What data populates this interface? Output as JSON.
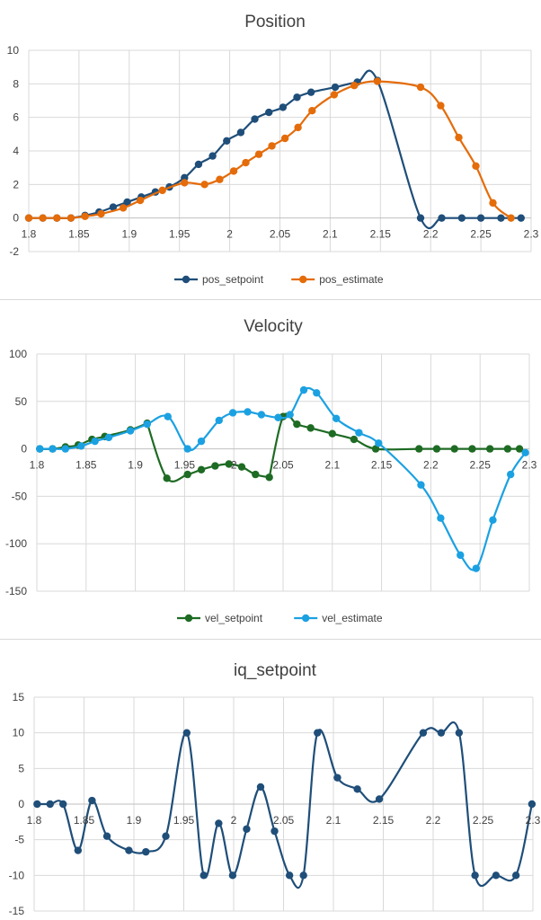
{
  "chart_data": [
    {
      "type": "line",
      "title": "Position",
      "xlabel": "",
      "ylabel": "",
      "xlim": [
        1.8,
        2.3
      ],
      "ylim": [
        -2,
        10
      ],
      "xticks": [
        "1.8",
        "1.85",
        "1.9",
        "1.95",
        "2",
        "2.05",
        "2.1",
        "2.15",
        "2.2",
        "2.25",
        "2.3"
      ],
      "yticks": [
        "-2",
        "0",
        "2",
        "4",
        "6",
        "8",
        "10"
      ],
      "grid": true,
      "legend": "bottom",
      "series": [
        {
          "name": "pos_setpoint",
          "color": "#1f4e79",
          "x": [
            1.8,
            1.814,
            1.828,
            1.842,
            1.856,
            1.87,
            1.884,
            1.898,
            1.912,
            1.926,
            1.94,
            1.955,
            1.969,
            1.983,
            1.997,
            2.011,
            2.025,
            2.039,
            2.053,
            2.067,
            2.081,
            2.105,
            2.127,
            2.147,
            2.19,
            2.211,
            2.231,
            2.25,
            2.27,
            2.29
          ],
          "y": [
            0,
            0,
            0,
            0,
            0.15,
            0.35,
            0.65,
            0.95,
            1.25,
            1.55,
            1.85,
            2.4,
            3.2,
            3.7,
            4.6,
            5.1,
            5.9,
            6.3,
            6.6,
            7.2,
            7.5,
            7.8,
            8.1,
            8.2,
            0,
            0,
            0,
            0,
            0,
            0
          ]
        },
        {
          "name": "pos_estimate",
          "color": "#e46c0a",
          "x": [
            1.8,
            1.814,
            1.828,
            1.842,
            1.856,
            1.872,
            1.894,
            1.911,
            1.933,
            1.955,
            1.975,
            1.99,
            2.004,
            2.016,
            2.029,
            2.042,
            2.055,
            2.068,
            2.082,
            2.104,
            2.124,
            2.147,
            2.19,
            2.21,
            2.228,
            2.245,
            2.262,
            2.28
          ],
          "y": [
            0,
            0,
            0,
            0,
            0.1,
            0.25,
            0.6,
            1.05,
            1.65,
            2.1,
            2.0,
            2.3,
            2.8,
            3.3,
            3.8,
            4.3,
            4.75,
            5.4,
            6.4,
            7.35,
            7.9,
            8.15,
            7.8,
            6.7,
            4.8,
            3.1,
            0.9,
            0
          ]
        }
      ]
    },
    {
      "type": "line",
      "title": "Velocity",
      "xlabel": "",
      "ylabel": "",
      "xlim": [
        1.8,
        2.3
      ],
      "ylim": [
        -150,
        100
      ],
      "xticks": [
        "1.8",
        "1.85",
        "1.9",
        "1.95",
        "2",
        "2.05",
        "2.1",
        "2.15",
        "2.2",
        "2.25",
        "2.3"
      ],
      "yticks": [
        "-150",
        "-100",
        "-50",
        "0",
        "50",
        "100"
      ],
      "grid": true,
      "legend": "bottom",
      "series": [
        {
          "name": "vel_setpoint",
          "color": "#1e6b24",
          "x": [
            1.803,
            1.816,
            1.829,
            1.842,
            1.856,
            1.869,
            1.895,
            1.912,
            1.932,
            1.953,
            1.967,
            1.981,
            1.995,
            2.008,
            2.022,
            2.036,
            2.05,
            2.064,
            2.078,
            2.1,
            2.122,
            2.144,
            2.188,
            2.206,
            2.224,
            2.242,
            2.26,
            2.278,
            2.29
          ],
          "y": [
            0,
            0,
            2,
            4,
            10,
            13,
            20,
            27,
            -31,
            -27,
            -22,
            -18,
            -16,
            -19,
            -27,
            -30,
            34,
            26,
            22,
            16,
            10,
            0,
            0,
            0,
            0,
            0,
            0,
            0,
            0
          ],
          "smooth_breaks_after": [
            7,
            15
          ]
        },
        {
          "name": "vel_estimate",
          "color": "#1ba1e2",
          "x": [
            1.803,
            1.816,
            1.829,
            1.845,
            1.859,
            1.873,
            1.895,
            1.912,
            1.933,
            1.953,
            1.967,
            1.985,
            1.999,
            2.014,
            2.028,
            2.045,
            2.057,
            2.071,
            2.084,
            2.104,
            2.127,
            2.147,
            2.19,
            2.21,
            2.23,
            2.246,
            2.263,
            2.281,
            2.296
          ],
          "y": [
            0,
            0,
            0,
            3,
            8,
            12,
            19,
            26,
            34,
            0,
            8,
            30,
            38,
            39,
            36,
            33,
            36,
            62,
            59,
            32,
            17,
            6,
            -38,
            -73,
            -112,
            -126,
            -75,
            -27,
            -4
          ]
        }
      ]
    },
    {
      "type": "line",
      "title": "iq_setpoint",
      "xlabel": "",
      "ylabel": "",
      "xlim": [
        1.8,
        2.3
      ],
      "ylim": [
        -15,
        15
      ],
      "xticks": [
        "1.8",
        "1.85",
        "1.9",
        "1.95",
        "2",
        "2.05",
        "2.1",
        "2.15",
        "2.2",
        "2.25",
        "2.3"
      ],
      "yticks": [
        "-15",
        "-10",
        "-5",
        "0",
        "5",
        "10",
        "15"
      ],
      "grid": true,
      "legend": "none",
      "series": [
        {
          "name": "iq_setpoint",
          "color": "#1f4e79",
          "x": [
            1.803,
            1.816,
            1.829,
            1.844,
            1.858,
            1.873,
            1.895,
            1.912,
            1.932,
            1.953,
            1.97,
            1.985,
            1.999,
            2.013,
            2.027,
            2.041,
            2.056,
            2.07,
            2.084,
            2.104,
            2.124,
            2.146,
            2.19,
            2.208,
            2.226,
            2.242,
            2.263,
            2.283,
            2.299
          ],
          "y": [
            0,
            0,
            0,
            -6.5,
            0.5,
            -4.5,
            -6.5,
            -6.7,
            -4.5,
            10,
            -10,
            -2.7,
            -10,
            -3.5,
            2.4,
            -3.8,
            -10,
            -10,
            10,
            3.7,
            2.1,
            0.7,
            10,
            10,
            10,
            -10,
            -10,
            -10,
            0
          ]
        }
      ]
    }
  ]
}
